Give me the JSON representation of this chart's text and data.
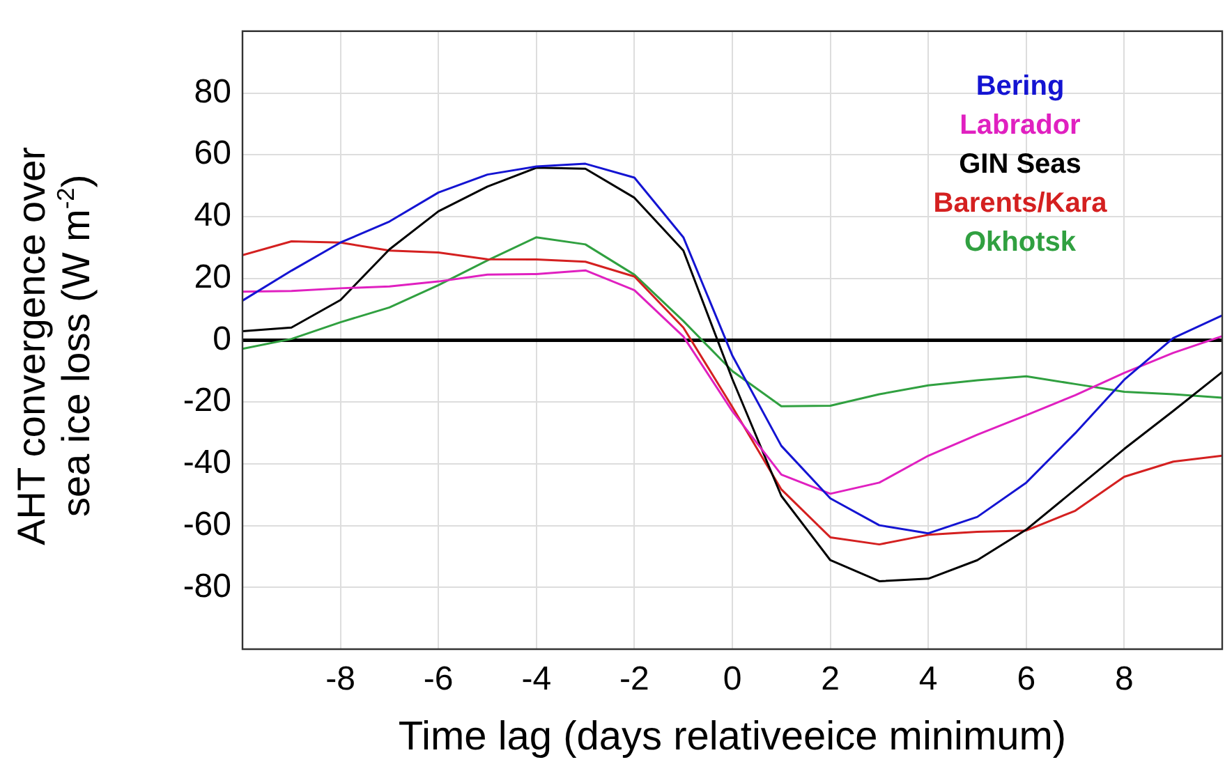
{
  "chart_data": {
    "type": "line",
    "xlabel": "Time lag (days relativeeice minimum)",
    "ylabel": "AHT convergence over\nsea ice loss (W m$^{-2}$)",
    "x": [
      -10,
      -9,
      -8,
      -7,
      -6,
      -5,
      -4,
      -3,
      -2,
      -1,
      0,
      1,
      2,
      3,
      4,
      5,
      6,
      7,
      8,
      9,
      10
    ],
    "series": [
      {
        "name": "Bering",
        "color": "#1414d2",
        "values": [
          12.8,
          22.5,
          31.6,
          38.4,
          47.8,
          53.6,
          56.2,
          57.1,
          52.6,
          33.3,
          -5,
          -34.2,
          -51.2,
          -59.9,
          -62.5,
          -57.2,
          -46.1,
          -30.1,
          -12.8,
          0.7,
          8
        ]
      },
      {
        "name": "Labrador",
        "color": "#e020c0",
        "values": [
          15.7,
          15.9,
          16.8,
          17.4,
          19,
          21.2,
          21.4,
          22.6,
          16.2,
          1.2,
          -23,
          -43.5,
          -49.7,
          -46.1,
          -37.4,
          -30.6,
          -24.3,
          -17.8,
          -10.6,
          -4.1,
          1.3
        ]
      },
      {
        "name": "GIN Seas",
        "color": "#000000",
        "values": [
          2.9,
          4.1,
          13,
          29.4,
          41.7,
          49.7,
          55.8,
          55.5,
          46.1,
          29,
          -12.6,
          -50.4,
          -71.2,
          -78,
          -77.2,
          -71.2,
          -61.3,
          -48.3,
          -35.2,
          -22.9,
          -10.3
        ]
      },
      {
        "name": "Barents/Kara",
        "color": "#d42020",
        "values": [
          27.5,
          32,
          31.6,
          29,
          28.4,
          26.2,
          26.1,
          25.4,
          20.6,
          4.1,
          -21.6,
          -48.3,
          -63.8,
          -66.1,
          -63,
          -62,
          -61.6,
          -55.2,
          -44.2,
          -39.3,
          -37.4
        ]
      },
      {
        "name": "Okhotsk",
        "color": "#30a040",
        "values": [
          -2.8,
          0.4,
          5.8,
          10.6,
          17.8,
          25.8,
          33.3,
          31,
          21.2,
          6.2,
          -10,
          -21.4,
          -21.2,
          -17.5,
          -14.6,
          -13,
          -11.7,
          -14.2,
          -16.7,
          -17.5,
          -18.6
        ]
      }
    ],
    "xlim": [
      -10,
      10
    ],
    "xticks": [
      -8,
      -6,
      -4,
      -2,
      0,
      2,
      4,
      6,
      8
    ],
    "ylim": [
      -100,
      100
    ],
    "yticks": [
      -80,
      -60,
      -40,
      -20,
      0,
      20,
      40,
      60,
      80
    ],
    "ref_lines": [
      {
        "axis": "y",
        "value": 0,
        "color": "#000000"
      }
    ],
    "grid": true,
    "legend": "top right",
    "marker": "none",
    "line_style": "solid"
  }
}
